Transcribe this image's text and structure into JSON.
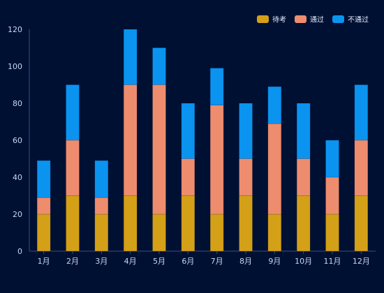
{
  "chart_data": {
    "type": "bar",
    "stacked": true,
    "categories": [
      "1月",
      "2月",
      "3月",
      "4月",
      "5月",
      "6月",
      "7月",
      "8月",
      "9月",
      "10月",
      "11月",
      "12月"
    ],
    "series": [
      {
        "name": "待考",
        "color": "#d4a017",
        "values": [
          20,
          30,
          20,
          30,
          20,
          30,
          20,
          30,
          20,
          30,
          20,
          30
        ]
      },
      {
        "name": "通过",
        "color": "#ee8c6e",
        "values": [
          9,
          30,
          9,
          60,
          70,
          20,
          59,
          20,
          49,
          20,
          20,
          30
        ]
      },
      {
        "name": "不通过",
        "color": "#0a94f0",
        "values": [
          20,
          30,
          20,
          30,
          20,
          30,
          20,
          30,
          20,
          30,
          20,
          30
        ]
      }
    ],
    "ylim": [
      0,
      120
    ],
    "yticks": [
      0,
      20,
      40,
      60,
      80,
      100,
      120
    ],
    "legend_position": "top-right",
    "grid": false,
    "background": "#001033"
  }
}
